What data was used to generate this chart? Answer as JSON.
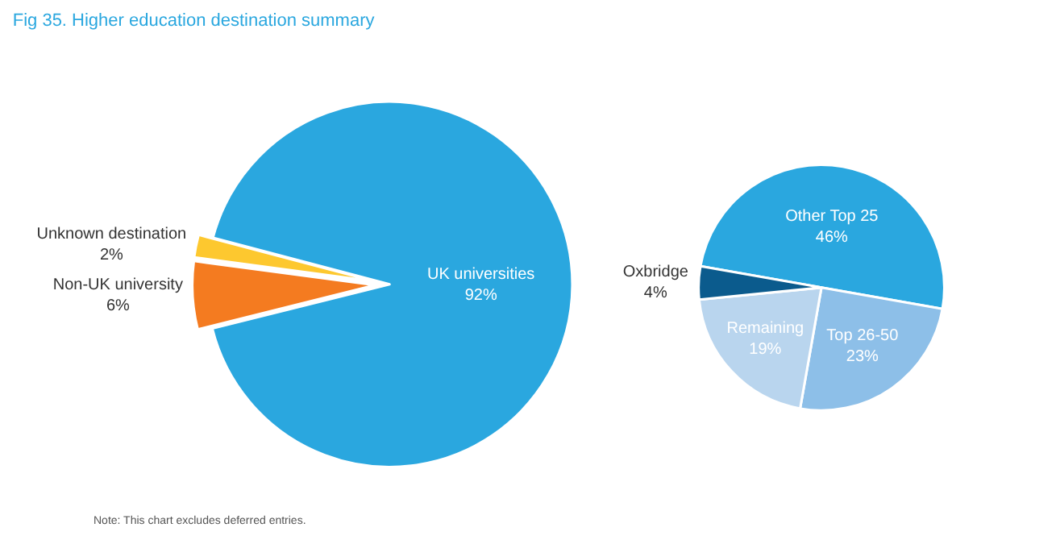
{
  "chart_data": [
    {
      "type": "pie",
      "title": "Fig 35. Higher education destination summary",
      "annotations": [
        "Note: This chart excludes deferred entries."
      ],
      "categories": [
        "Non-UK university",
        "Unknown destination",
        "UK universities"
      ],
      "values": [
        6,
        2,
        92
      ],
      "colors": [
        "#f47b20",
        "#fdc82f",
        "#2aa7df"
      ],
      "value_labels": [
        "6%",
        "2%",
        "92%"
      ]
    },
    {
      "type": "pie",
      "value_labels": [
        "46%",
        "23%",
        "19%",
        "4%"
      ],
      "categories": [
        "Other Top 25",
        "Top 26-50",
        "Remaining",
        "Oxbridge"
      ],
      "values": [
        46,
        23,
        19,
        4
      ],
      "colors": [
        "#2aa7df",
        "#8dbfe8",
        "#b9d5ee",
        "#0b5b8d"
      ]
    }
  ]
}
